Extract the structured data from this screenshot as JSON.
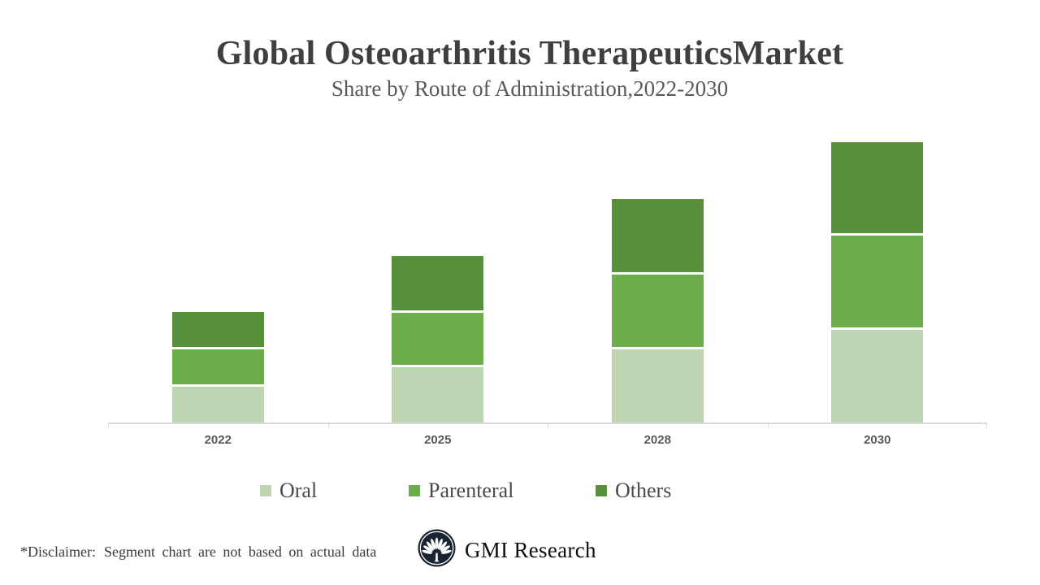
{
  "header": {
    "title": "Global Osteoarthritis TherapeuticsMarket",
    "subtitle": "Share by Route of Administration,2022-2030"
  },
  "chart_data": {
    "type": "bar",
    "stacked": true,
    "title": "Global Osteoarthritis TherapeuticsMarket",
    "subtitle": "Share by Route of Administration,2022-2030",
    "categories": [
      "2022",
      "2025",
      "2028",
      "2030"
    ],
    "series": [
      {
        "name": "Oral",
        "color": "#bdd4b2",
        "values": [
          44,
          68,
          90,
          114
        ]
      },
      {
        "name": "Parenteral",
        "color": "#6cac4a",
        "values": [
          43,
          64,
          89,
          113
        ]
      },
      {
        "name": "Others",
        "color": "#588f3a",
        "values": [
          43,
          67,
          90,
          112
        ]
      }
    ],
    "bar_totals": [
      136,
      205,
      275,
      345
    ],
    "units": "relative height, unlabeled (disclaimer: segments not based on actual data)",
    "segment_share_note": "each bar split into three roughly equal segments",
    "xlabel": "",
    "ylabel": "",
    "y_axis_visible": false,
    "grid": false,
    "legend_position": "bottom"
  },
  "footer": {
    "disclaimer_label": "*Disclaimer:",
    "disclaimer_text": "Segment chart are not based on actual data",
    "brand": "GMI Research",
    "logo_icon": "fan-tree-icon"
  },
  "colors": {
    "background": "#ffffff",
    "title_text": "#3f3f3f",
    "subtitle_text": "#595959",
    "axis_line": "#d9d9d9",
    "axis_label_text": "#595959",
    "legend_text": "#4a4a4a",
    "oral_green": "#bdd4b2",
    "parenteral_green": "#6cac4a",
    "others_green": "#588f3a",
    "logo_navy": "#1a2433"
  }
}
